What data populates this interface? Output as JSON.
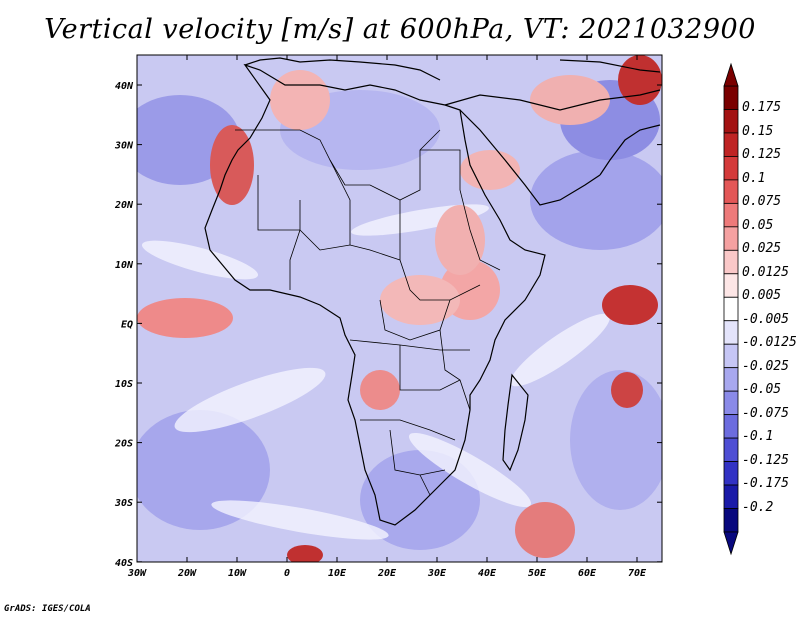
{
  "title": "Vertical velocity [m/s] at 600hPa, VT: 2021032900",
  "credit": "GrADS: IGES/COLA",
  "lon_ticks": [
    "30W",
    "20W",
    "10W",
    "0",
    "10E",
    "20E",
    "30E",
    "40E",
    "50E",
    "60E",
    "70E"
  ],
  "lat_ticks": [
    "40N",
    "30N",
    "20N",
    "10N",
    "EQ",
    "10S",
    "20S",
    "30S",
    "40S"
  ],
  "colorbar": {
    "labels": [
      "0.175",
      "0.15",
      "0.125",
      "0.1",
      "0.075",
      "0.05",
      "0.025",
      "0.0125",
      "0.005",
      "-0.005",
      "-0.0125",
      "-0.025",
      "-0.05",
      "-0.075",
      "-0.1",
      "-0.125",
      "-0.175",
      "-0.2"
    ],
    "colors": [
      "#7a0000",
      "#a31212",
      "#bf2424",
      "#d43a3a",
      "#e35757",
      "#ee7a7a",
      "#f5a1a1",
      "#fac8c8",
      "#fde6e6",
      "#ffffff",
      "#e4e4fb",
      "#c6c6f5",
      "#a8a8ef",
      "#8a8ae8",
      "#6c6cdf",
      "#4e4ed4",
      "#3232c4",
      "#1a1aa8",
      "#08087e"
    ]
  }
}
